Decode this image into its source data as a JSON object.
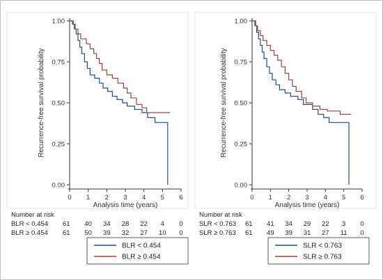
{
  "chart_data": [
    {
      "type": "line",
      "subtype": "kaplan-meier step",
      "xlabel": "Analysis time (years)",
      "ylabel": "Recurrence-free survival probability",
      "xlim": [
        0,
        6
      ],
      "ylim": [
        0,
        1
      ],
      "xticks": [
        "0",
        "1",
        "2",
        "3",
        "4",
        "5",
        "6"
      ],
      "yticks": [
        "0.00",
        "0.25",
        "0.50",
        "0.75",
        "1.00"
      ],
      "grid": false,
      "colors": [
        "#1F4E8C",
        "#A0423A"
      ],
      "series": [
        {
          "name": "BLR < 0.454",
          "points": [
            [
              0,
              1
            ],
            [
              0.15,
              1
            ],
            [
              0.15,
              0.98
            ],
            [
              0.25,
              0.98
            ],
            [
              0.25,
              0.95
            ],
            [
              0.35,
              0.95
            ],
            [
              0.35,
              0.92
            ],
            [
              0.45,
              0.92
            ],
            [
              0.45,
              0.88
            ],
            [
              0.55,
              0.88
            ],
            [
              0.55,
              0.84
            ],
            [
              0.65,
              0.84
            ],
            [
              0.65,
              0.8
            ],
            [
              0.8,
              0.8
            ],
            [
              0.8,
              0.75
            ],
            [
              0.95,
              0.75
            ],
            [
              0.95,
              0.71
            ],
            [
              1.1,
              0.71
            ],
            [
              1.1,
              0.67
            ],
            [
              1.35,
              0.67
            ],
            [
              1.35,
              0.65
            ],
            [
              1.6,
              0.65
            ],
            [
              1.6,
              0.62
            ],
            [
              1.8,
              0.62
            ],
            [
              1.8,
              0.59
            ],
            [
              2.05,
              0.59
            ],
            [
              2.05,
              0.57
            ],
            [
              2.3,
              0.57
            ],
            [
              2.3,
              0.54
            ],
            [
              2.55,
              0.54
            ],
            [
              2.55,
              0.52
            ],
            [
              2.85,
              0.52
            ],
            [
              2.85,
              0.5
            ],
            [
              3.1,
              0.5
            ],
            [
              3.1,
              0.48
            ],
            [
              3.5,
              0.48
            ],
            [
              3.5,
              0.46
            ],
            [
              3.9,
              0.46
            ],
            [
              3.9,
              0.44
            ],
            [
              4.2,
              0.44
            ],
            [
              4.2,
              0.41
            ],
            [
              4.6,
              0.41
            ],
            [
              4.6,
              0.38
            ],
            [
              5.28,
              0.38
            ],
            [
              5.28,
              0.0
            ]
          ]
        },
        {
          "name": "BLR ≥ 0.454",
          "points": [
            [
              0,
              1
            ],
            [
              0.2,
              1
            ],
            [
              0.2,
              0.98
            ],
            [
              0.3,
              0.98
            ],
            [
              0.3,
              0.95
            ],
            [
              0.45,
              0.95
            ],
            [
              0.45,
              0.92
            ],
            [
              0.6,
              0.92
            ],
            [
              0.6,
              0.89
            ],
            [
              0.9,
              0.89
            ],
            [
              0.9,
              0.86
            ],
            [
              1.1,
              0.86
            ],
            [
              1.1,
              0.83
            ],
            [
              1.3,
              0.83
            ],
            [
              1.3,
              0.8
            ],
            [
              1.45,
              0.8
            ],
            [
              1.45,
              0.77
            ],
            [
              1.6,
              0.77
            ],
            [
              1.6,
              0.74
            ],
            [
              1.75,
              0.74
            ],
            [
              1.75,
              0.7
            ],
            [
              2.0,
              0.7
            ],
            [
              2.0,
              0.67
            ],
            [
              2.3,
              0.67
            ],
            [
              2.3,
              0.65
            ],
            [
              2.6,
              0.65
            ],
            [
              2.6,
              0.62
            ],
            [
              2.9,
              0.62
            ],
            [
              2.9,
              0.59
            ],
            [
              3.1,
              0.59
            ],
            [
              3.1,
              0.56
            ],
            [
              3.3,
              0.56
            ],
            [
              3.3,
              0.53
            ],
            [
              3.6,
              0.53
            ],
            [
              3.6,
              0.49
            ],
            [
              3.9,
              0.49
            ],
            [
              3.9,
              0.47
            ],
            [
              4.15,
              0.47
            ],
            [
              4.15,
              0.44
            ],
            [
              5.4,
              0.44
            ]
          ]
        }
      ],
      "risk_table": {
        "title": "Number at risk",
        "rows": [
          {
            "label": "BLR  < 0.454",
            "values": [
              "61",
              "40",
              "34",
              "28",
              "22",
              "4",
              "0"
            ]
          },
          {
            "label": "BLR  ≥ 0.454",
            "values": [
              "61",
              "50",
              "39",
              "32",
              "27",
              "10",
              "0"
            ]
          }
        ]
      },
      "legend": [
        "BLR < 0.454",
        "BLR ≥ 0.454"
      ]
    },
    {
      "type": "line",
      "subtype": "kaplan-meier step",
      "xlabel": "Analysis time (years)",
      "ylabel": "Recurrence-free survival probability",
      "xlim": [
        0,
        6
      ],
      "ylim": [
        0,
        1
      ],
      "xticks": [
        "0",
        "1",
        "2",
        "3",
        "4",
        "5",
        "6"
      ],
      "yticks": [
        "0.00",
        "0.25",
        "0.50",
        "0.75",
        "1.00"
      ],
      "grid": false,
      "colors": [
        "#1F4E8C",
        "#A0423A"
      ],
      "series": [
        {
          "name": "SLR < 0.763",
          "points": [
            [
              0,
              1
            ],
            [
              0.15,
              1
            ],
            [
              0.15,
              0.97
            ],
            [
              0.25,
              0.97
            ],
            [
              0.25,
              0.93
            ],
            [
              0.35,
              0.93
            ],
            [
              0.35,
              0.89
            ],
            [
              0.45,
              0.89
            ],
            [
              0.45,
              0.85
            ],
            [
              0.55,
              0.85
            ],
            [
              0.55,
              0.81
            ],
            [
              0.65,
              0.81
            ],
            [
              0.65,
              0.77
            ],
            [
              0.8,
              0.77
            ],
            [
              0.8,
              0.72
            ],
            [
              0.95,
              0.72
            ],
            [
              0.95,
              0.68
            ],
            [
              1.1,
              0.68
            ],
            [
              1.1,
              0.64
            ],
            [
              1.3,
              0.64
            ],
            [
              1.3,
              0.61
            ],
            [
              1.5,
              0.61
            ],
            [
              1.5,
              0.58
            ],
            [
              1.8,
              0.58
            ],
            [
              1.8,
              0.56
            ],
            [
              2.1,
              0.56
            ],
            [
              2.1,
              0.54
            ],
            [
              2.5,
              0.54
            ],
            [
              2.5,
              0.52
            ],
            [
              2.8,
              0.52
            ],
            [
              2.8,
              0.49
            ],
            [
              3.3,
              0.49
            ],
            [
              3.3,
              0.46
            ],
            [
              3.6,
              0.46
            ],
            [
              3.6,
              0.43
            ],
            [
              3.9,
              0.43
            ],
            [
              3.9,
              0.41
            ],
            [
              4.2,
              0.41
            ],
            [
              4.2,
              0.38
            ],
            [
              5.28,
              0.38
            ],
            [
              5.28,
              0.0
            ]
          ]
        },
        {
          "name": "SLR ≥ 0.763",
          "points": [
            [
              0,
              1
            ],
            [
              0.2,
              1
            ],
            [
              0.2,
              0.97
            ],
            [
              0.3,
              0.97
            ],
            [
              0.3,
              0.94
            ],
            [
              0.45,
              0.94
            ],
            [
              0.45,
              0.91
            ],
            [
              0.6,
              0.91
            ],
            [
              0.6,
              0.88
            ],
            [
              0.8,
              0.88
            ],
            [
              0.8,
              0.85
            ],
            [
              1.0,
              0.85
            ],
            [
              1.0,
              0.82
            ],
            [
              1.2,
              0.82
            ],
            [
              1.2,
              0.79
            ],
            [
              1.4,
              0.79
            ],
            [
              1.4,
              0.76
            ],
            [
              1.6,
              0.76
            ],
            [
              1.6,
              0.72
            ],
            [
              1.8,
              0.72
            ],
            [
              1.8,
              0.68
            ],
            [
              2.0,
              0.68
            ],
            [
              2.0,
              0.64
            ],
            [
              2.2,
              0.64
            ],
            [
              2.2,
              0.6
            ],
            [
              2.4,
              0.6
            ],
            [
              2.4,
              0.57
            ],
            [
              2.7,
              0.57
            ],
            [
              2.7,
              0.53
            ],
            [
              2.95,
              0.53
            ],
            [
              2.95,
              0.5
            ],
            [
              3.3,
              0.5
            ],
            [
              3.3,
              0.48
            ],
            [
              3.7,
              0.48
            ],
            [
              3.7,
              0.46
            ],
            [
              4.1,
              0.46
            ],
            [
              4.1,
              0.45
            ],
            [
              4.8,
              0.45
            ],
            [
              4.8,
              0.43
            ],
            [
              5.4,
              0.43
            ]
          ]
        }
      ],
      "risk_table": {
        "title": "Number at risk",
        "rows": [
          {
            "label": "SLR < 0.763",
            "values": [
              "61",
              "41",
              "34",
              "29",
              "22",
              "3",
              "0"
            ]
          },
          {
            "label": "SLR ≥ 0.763",
            "values": [
              "61",
              "49",
              "39",
              "31",
              "27",
              "11",
              "0"
            ]
          }
        ]
      },
      "legend": [
        "SLR < 0.763",
        "SLR ≥ 0.763"
      ]
    }
  ]
}
